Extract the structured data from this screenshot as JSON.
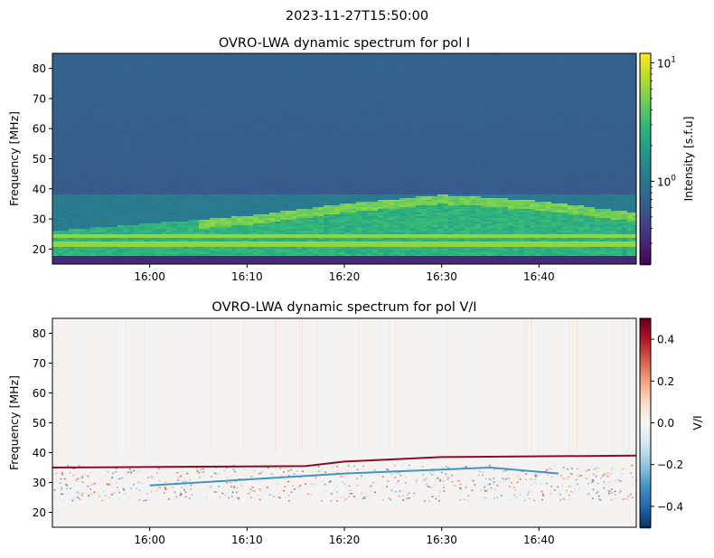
{
  "suptitle": "2023-11-27T15:50:00",
  "chart_data": [
    {
      "type": "heatmap",
      "title": "OVRO-LWA dynamic spectrum for pol I",
      "ylabel": "Frequency [MHz]",
      "xlabel": "",
      "x_range": [
        "15:50",
        "16:50"
      ],
      "ylim": [
        15,
        85
      ],
      "x_ticks": [
        "16:00",
        "16:10",
        "16:20",
        "16:30",
        "16:40"
      ],
      "y_ticks": [
        20,
        30,
        40,
        50,
        60,
        70,
        80
      ],
      "colormap": "viridis",
      "colorbar": {
        "label": "Intensity [s.f.u]",
        "scale": "log",
        "range": [
          0.2,
          12
        ],
        "ticks": [
          {
            "value": 10,
            "base": "10",
            "exp": "1"
          },
          {
            "value": 1,
            "base": "10",
            "exp": "0"
          }
        ]
      },
      "features": [
        {
          "name": "background",
          "intensity_sfu": 0.6,
          "freq_mhz": [
            40,
            85
          ]
        },
        {
          "name": "broadband emission",
          "intensity_sfu": 3.0,
          "freq_mhz": [
            18,
            38
          ]
        },
        {
          "name": "burst envelope upper edge",
          "time": [
            "15:50",
            "16:10",
            "16:20",
            "16:30",
            "16:40",
            "16:50"
          ],
          "freq_mhz": [
            26,
            31,
            35,
            38,
            36,
            32
          ]
        }
      ]
    },
    {
      "type": "heatmap",
      "title": "OVRO-LWA dynamic spectrum for pol V/I",
      "ylabel": "Frequency [MHz]",
      "xlabel": "",
      "x_range": [
        "15:50",
        "16:50"
      ],
      "ylim": [
        15,
        85
      ],
      "x_ticks": [
        "16:00",
        "16:10",
        "16:20",
        "16:30",
        "16:40"
      ],
      "y_ticks": [
        20,
        30,
        40,
        50,
        60,
        70,
        80
      ],
      "colormap": "RdBu_r",
      "colorbar": {
        "label": "V/I",
        "scale": "linear",
        "range": [
          -0.5,
          0.5
        ],
        "ticks": [
          "0.4",
          "0.2",
          "0.0",
          "−0.2",
          "−0.4"
        ]
      },
      "features": [
        {
          "name": "positive V/I track",
          "v_over_i": 0.45,
          "time": [
            "15:50",
            "16:05",
            "16:16",
            "16:20",
            "16:30",
            "16:50"
          ],
          "freq_mhz": [
            35,
            35.3,
            35.5,
            37,
            38.5,
            39
          ]
        },
        {
          "name": "negative V/I track",
          "v_over_i": -0.3,
          "time": [
            "16:00",
            "16:20",
            "16:35",
            "16:42"
          ],
          "freq_mhz": [
            29,
            33,
            35,
            33
          ]
        }
      ]
    }
  ]
}
